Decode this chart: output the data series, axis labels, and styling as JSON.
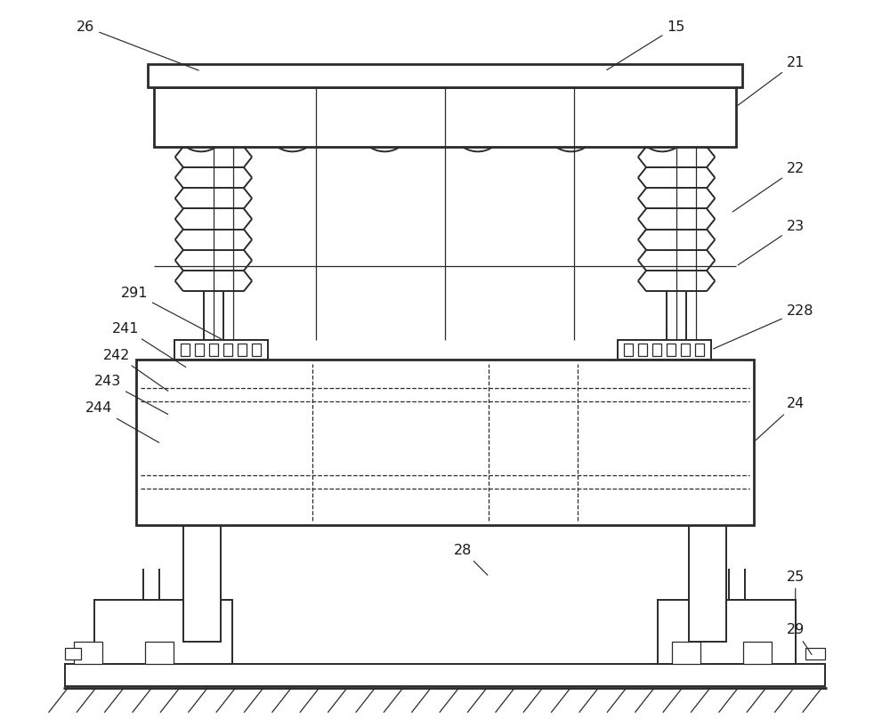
{
  "bg_color": "#ffffff",
  "line_color": "#2a2a2a",
  "lw": 1.4,
  "lw_thick": 2.0,
  "lw_thin": 0.9,
  "fs": 11.5
}
